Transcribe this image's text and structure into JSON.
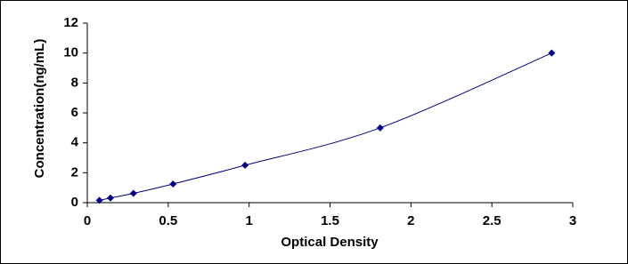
{
  "chart_data": {
    "type": "scatter",
    "x_label": "Optical Density",
    "y_label": "Concentration(ng/mL)",
    "x": [
      0.075,
      0.143,
      0.285,
      0.53,
      0.975,
      1.81,
      2.87
    ],
    "values": [
      0.156,
      0.312,
      0.625,
      1.25,
      2.5,
      5,
      10
    ],
    "color": "#00008b",
    "marker": "diamond",
    "smooth_line": true,
    "xlim": [
      0,
      3
    ],
    "xticks": [
      0,
      0.5,
      1,
      1.5,
      2,
      2.5,
      3
    ],
    "ylim": [
      0,
      12
    ],
    "yticks": [
      0,
      2,
      4,
      6,
      8,
      10,
      12
    ],
    "grid": false
  }
}
